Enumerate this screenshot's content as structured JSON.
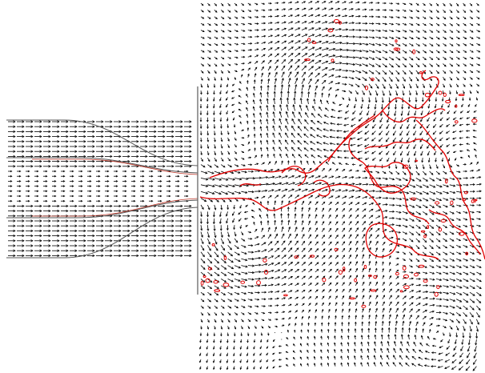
{
  "figure": {
    "kind": "velocity vector field with flame contour",
    "colors": {
      "background": "#ffffff",
      "vectors": "#000000",
      "nozzle_walls": "#555555",
      "wall_accent": "#c0392b",
      "flame_contour": "#e00000"
    },
    "regions": [
      "nozzle-inlet-channel",
      "combustion-chamber"
    ],
    "features": [
      "recirculation-vortex-upper",
      "recirculation-vortex-lower",
      "recirculation-vortex-bottom-right",
      "shear-layer-flame-front"
    ]
  }
}
